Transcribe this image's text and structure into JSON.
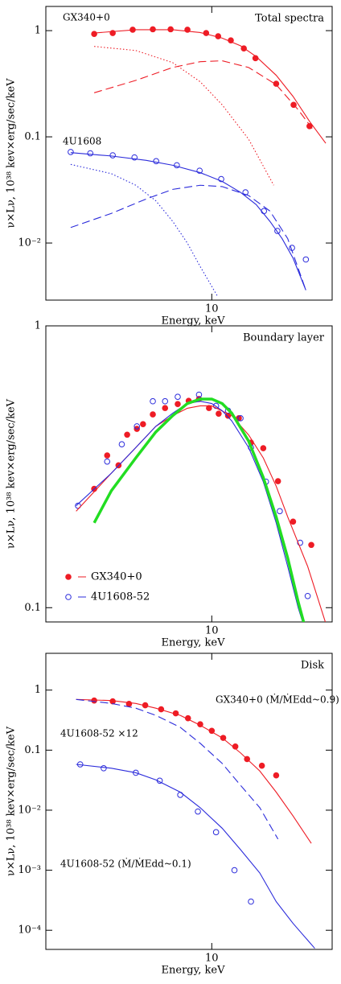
{
  "chart_data": [
    {
      "type": "line",
      "title": "Total spectra",
      "xlabel": "Energy, keV",
      "ylabel": "ν×Lν, 10³⁸ kev×erg/sec/keV",
      "xscale": "log",
      "yscale": "log",
      "xlim": [
        2.2,
        30
      ],
      "ylim": [
        0.0029,
        1.69
      ],
      "xticks": [
        10
      ],
      "yticks": [
        1,
        0.1,
        {
          "value": 0.01,
          "label": "10⁻²"
        }
      ],
      "annotations": [
        {
          "text": "GX340+0",
          "color": "#ee1c25"
        },
        {
          "text": "4U1608",
          "color": "#2b2bdb"
        }
      ],
      "series": [
        {
          "style": "filled",
          "color": "#ee1c25",
          "x": [
            3.42,
            4.05,
            4.86,
            5.84,
            6.87,
            8.01,
            9.5,
            10.6,
            11.9,
            13.4,
            14.9,
            18.0,
            21.1,
            24.4
          ],
          "values": [
            0.93,
            0.95,
            1.02,
            1.03,
            1.03,
            1.02,
            0.95,
            0.885,
            0.81,
            0.68,
            0.55,
            0.316,
            0.2,
            0.126
          ]
        },
        {
          "style": "solid",
          "color": "#ee1c25",
          "x": [
            3.42,
            5,
            7,
            9,
            11,
            13,
            15,
            18,
            21,
            24.4,
            28.3
          ],
          "values": [
            0.95,
            1.02,
            1.02,
            0.96,
            0.85,
            0.72,
            0.57,
            0.38,
            0.24,
            0.14,
            0.087
          ]
        },
        {
          "style": "dashed",
          "color": "#ee1c25",
          "x": [
            3.42,
            5,
            7,
            9,
            11,
            14,
            18,
            22,
            25
          ],
          "values": [
            0.26,
            0.34,
            0.45,
            0.51,
            0.52,
            0.45,
            0.31,
            0.18,
            0.12
          ]
        },
        {
          "style": "dotted",
          "color": "#ee1c25",
          "x": [
            3.42,
            5,
            7,
            9,
            11,
            14,
            17.6
          ],
          "values": [
            0.71,
            0.65,
            0.5,
            0.33,
            0.2,
            0.095,
            0.035
          ]
        },
        {
          "style": "open",
          "color": "#2b2bdb",
          "x": [
            2.76,
            3.3,
            4.05,
            4.94,
            6.02,
            7.27,
            8.95,
            10.9,
            13.6,
            16.1,
            18.2,
            20.8,
            23.6
          ],
          "values": [
            0.072,
            0.07,
            0.067,
            0.064,
            0.059,
            0.054,
            0.048,
            0.04,
            0.03,
            0.02,
            0.013,
            0.009,
            0.007
          ]
        },
        {
          "style": "solid",
          "color": "#2b2bdb",
          "x": [
            2.76,
            4,
            5.5,
            7,
            9,
            11,
            13,
            15,
            17,
            19,
            21,
            23.6
          ],
          "values": [
            0.071,
            0.066,
            0.06,
            0.054,
            0.046,
            0.038,
            0.03,
            0.023,
            0.016,
            0.011,
            0.0072,
            0.0036
          ]
        },
        {
          "style": "dashed",
          "color": "#2b2bdb",
          "x": [
            2.76,
            4,
            5.5,
            7,
            9,
            11,
            14,
            17,
            20,
            23.6
          ],
          "values": [
            0.014,
            0.019,
            0.026,
            0.032,
            0.035,
            0.034,
            0.028,
            0.02,
            0.011,
            0.0036
          ]
        },
        {
          "style": "dotted",
          "color": "#2b2bdb",
          "x": [
            2.76,
            4,
            5,
            6,
            7,
            8,
            9,
            10.5
          ],
          "values": [
            0.055,
            0.045,
            0.035,
            0.025,
            0.016,
            0.01,
            0.006,
            0.0032
          ]
        }
      ]
    },
    {
      "type": "line",
      "title": "Boundary layer",
      "xlabel": "Energy, keV",
      "ylabel": "ν×Lν, 10³⁸ kev×erg/sec/keV",
      "xscale": "log",
      "yscale": "log",
      "xlim": [
        2.2,
        30
      ],
      "ylim": [
        0.089,
        1
      ],
      "xticks": [
        10
      ],
      "yticks": [
        1,
        0.1
      ],
      "legend": "lower left",
      "series": [
        {
          "name": "GX340+0",
          "style": "filled",
          "color": "#ee1c25",
          "x": [
            3.42,
            3.85,
            4.27,
            4.62,
            5.05,
            5.34,
            5.84,
            6.53,
            7.33,
            8.1,
            8.9,
            9.75,
            10.65,
            11.6,
            12.8,
            14.3,
            16.0,
            18.3,
            21.0,
            24.8
          ],
          "values": [
            0.264,
            0.347,
            0.32,
            0.411,
            0.431,
            0.448,
            0.485,
            0.511,
            0.528,
            0.542,
            0.55,
            0.511,
            0.488,
            0.48,
            0.47,
            0.385,
            0.368,
            0.281,
            0.202,
            0.167
          ]
        },
        {
          "name": "4U1608-52",
          "style": "open",
          "color": "#2b2bdb",
          "x": [
            2.95,
            3.85,
            4.4,
            5.05,
            5.84,
            6.53,
            7.33,
            8.9,
            10.4,
            11.6,
            13.0,
            14.3,
            16.4,
            18.6,
            22.4,
            24.0
          ],
          "values": [
            0.23,
            0.33,
            0.38,
            0.44,
            0.54,
            0.54,
            0.56,
            0.57,
            0.52,
            0.5,
            0.47,
            0.37,
            0.28,
            0.22,
            0.17,
            0.11
          ]
        },
        {
          "style": "solid",
          "color": "#ee1c25",
          "x": [
            2.9,
            4,
            5,
            6,
            7,
            8,
            9,
            10,
            12,
            14,
            16,
            18,
            20,
            24,
            28.3
          ],
          "values": [
            0.22,
            0.3,
            0.37,
            0.44,
            0.48,
            0.51,
            0.52,
            0.52,
            0.48,
            0.41,
            0.34,
            0.27,
            0.21,
            0.14,
            0.088
          ]
        },
        {
          "style": "solid",
          "color": "#2b2bdb",
          "x": [
            2.9,
            4,
            5,
            6,
            7,
            8,
            9,
            10,
            11,
            12,
            14,
            16,
            18,
            20,
            22,
            23
          ],
          "values": [
            0.23,
            0.3,
            0.37,
            0.44,
            0.49,
            0.53,
            0.54,
            0.53,
            0.5,
            0.46,
            0.37,
            0.28,
            0.2,
            0.14,
            0.1,
            0.088
          ]
        },
        {
          "style": "thick",
          "color": "#22dd22",
          "x": [
            3.42,
            4,
            5,
            6,
            7,
            8,
            9,
            10,
            11,
            12,
            14,
            16,
            18,
            20,
            22,
            23.2
          ],
          "values": [
            0.2,
            0.26,
            0.34,
            0.42,
            0.48,
            0.53,
            0.55,
            0.55,
            0.53,
            0.49,
            0.39,
            0.29,
            0.21,
            0.15,
            0.105,
            0.088
          ]
        }
      ]
    },
    {
      "type": "line",
      "title": "Disk",
      "xlabel": "Energy, keV",
      "ylabel": "ν×Lν, 10³⁸ kev×erg/sec/keV",
      "xscale": "log",
      "yscale": "log",
      "xlim": [
        2.2,
        30
      ],
      "ylim": [
        4.8e-05,
        4.1
      ],
      "xticks": [
        10
      ],
      "yticks": [
        1,
        0.1,
        {
          "value": 0.01,
          "label": "10⁻²"
        },
        {
          "value": 0.001,
          "label": "10⁻³"
        },
        {
          "value": 0.0001,
          "label": "10⁻⁴"
        }
      ],
      "annotations": [
        {
          "text": "GX340+0 (Ṁ/ṀEdd~0.9)",
          "color": "#ee1c25"
        },
        {
          "text": "4U1608-52 ×12",
          "color": "#2b2bdb"
        },
        {
          "text": "4U1608-52 (Ṁ/ṀEdd~0.1)",
          "color": "#2b2bdb"
        }
      ],
      "series": [
        {
          "style": "filled",
          "color": "#ee1c25",
          "x": [
            3.42,
            4.05,
            4.7,
            5.45,
            6.3,
            7.2,
            8.05,
            9.0,
            10.0,
            11.1,
            12.4,
            13.8,
            15.8,
            18.0
          ],
          "values": [
            0.67,
            0.65,
            0.59,
            0.56,
            0.48,
            0.41,
            0.34,
            0.27,
            0.21,
            0.16,
            0.115,
            0.071,
            0.055,
            0.038
          ]
        },
        {
          "style": "solid",
          "color": "#ee1c25",
          "x": [
            2.9,
            4,
            5,
            6,
            7.5,
            9,
            11,
            13,
            15.5,
            18,
            21,
            24.8
          ],
          "values": [
            0.7,
            0.67,
            0.6,
            0.5,
            0.38,
            0.26,
            0.16,
            0.09,
            0.045,
            0.02,
            0.008,
            0.0028
          ]
        },
        {
          "style": "dashed",
          "color": "#2b2bdb",
          "x": [
            2.9,
            4,
            5,
            6,
            7.5,
            9,
            11,
            13,
            15.5,
            18.3
          ],
          "values": [
            0.7,
            0.6,
            0.5,
            0.38,
            0.24,
            0.13,
            0.06,
            0.026,
            0.011,
            0.0033
          ]
        },
        {
          "style": "open",
          "color": "#2b2bdb",
          "x": [
            3.01,
            3.73,
            5.0,
            6.22,
            7.5,
            8.81,
            10.4,
            12.3,
            14.3
          ],
          "values": [
            0.058,
            0.05,
            0.042,
            0.031,
            0.018,
            0.0095,
            0.0043,
            0.001,
            0.0003
          ]
        },
        {
          "style": "solid",
          "color": "#2b2bdb",
          "x": [
            2.9,
            4,
            5,
            6,
            7.5,
            9,
            11,
            13,
            15.5,
            18,
            21,
            25.6
          ],
          "values": [
            0.058,
            0.05,
            0.042,
            0.032,
            0.02,
            0.011,
            0.005,
            0.0022,
            0.0009,
            0.0003,
            0.00013,
            5e-05
          ]
        }
      ]
    }
  ]
}
